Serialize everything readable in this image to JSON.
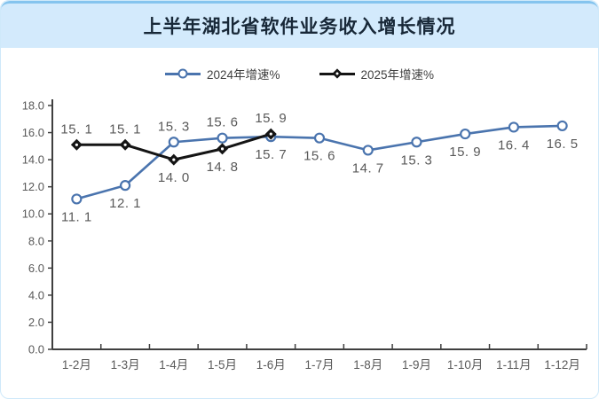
{
  "header": {
    "title": "上半年湖北省软件业务收入增长情况"
  },
  "chart_data": {
    "type": "line",
    "title": "上半年湖北省软件业务收入增长情况",
    "categories": [
      "1-2月",
      "1-3月",
      "1-4月",
      "1-5月",
      "1-6月",
      "1-7月",
      "1-8月",
      "1-9月",
      "1-10月",
      "1-11月",
      "1-12月"
    ],
    "series": [
      {
        "name": "2024年增速%",
        "color": "#4a74ae",
        "marker": "circle",
        "values": [
          11.1,
          12.1,
          15.3,
          15.6,
          15.7,
          15.6,
          14.7,
          15.3,
          15.9,
          16.4,
          16.5
        ],
        "label_positions": [
          "below",
          "below",
          "above",
          "above",
          "below",
          "below",
          "below",
          "below",
          "below",
          "below",
          "below"
        ]
      },
      {
        "name": "2025年增速%",
        "color": "#141414",
        "marker": "diamond",
        "values": [
          15.1,
          15.1,
          14.0,
          14.8,
          15.9
        ],
        "label_positions": [
          "above",
          "above",
          "below",
          "below",
          "above"
        ]
      }
    ],
    "ylim": [
      0,
      18
    ],
    "ytick_step": 2,
    "grid": false,
    "legend_position": "top",
    "colors": {
      "label_text": "#595959",
      "tick_text": "#595959",
      "axis": "#3f3f3f",
      "header_bg": "#d3eafc",
      "header_border": "#85c4ee",
      "card_border": "#cfe9fa",
      "title_text": "#182838"
    }
  }
}
